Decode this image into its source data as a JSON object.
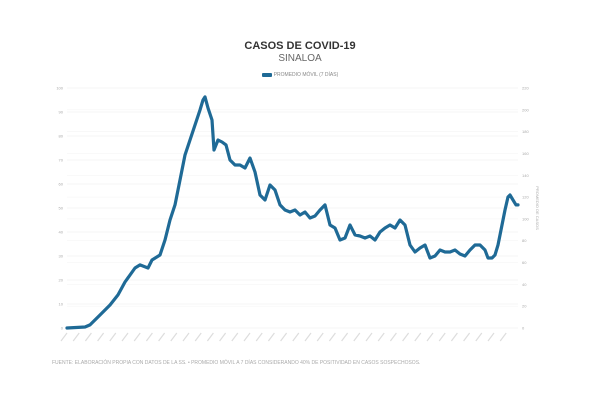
{
  "chart_data": {
    "type": "line",
    "title": "CASOS DE COVID-19",
    "subtitle": "SINALOA",
    "legend": [
      {
        "name": "PROMEDIO MÓVIL (7 DÍAS)",
        "color": "#1f6a96"
      }
    ],
    "legend_placement": "top-center",
    "left_axis": {
      "ylim": [
        0,
        100
      ],
      "ticks": [
        0,
        10,
        20,
        30,
        40,
        50,
        60,
        70,
        80,
        90,
        100
      ]
    },
    "right_axis": {
      "ylim": [
        0,
        220
      ],
      "ticks": [
        0,
        20,
        40,
        60,
        80,
        100,
        120,
        140,
        160,
        180,
        200,
        220
      ],
      "label": "PROMEDIO DE CASOS"
    },
    "grid": true,
    "series": [
      {
        "name": "PROMEDIO MÓVIL (7 DÍAS)",
        "axis": "right",
        "x": [
          0,
          18,
          23,
          33,
          43,
          51,
          58,
          68,
          73,
          81,
          85,
          93,
          98,
          103,
          108,
          113,
          118,
          123,
          128,
          133,
          136,
          138,
          141,
          145,
          147,
          151,
          155,
          159,
          163,
          168,
          173,
          178,
          183,
          188,
          193,
          198,
          203,
          208,
          213,
          218,
          223,
          228,
          233,
          238,
          243,
          248,
          253,
          258,
          263,
          268,
          273,
          278,
          283,
          288,
          293,
          298,
          303,
          308,
          313,
          318,
          323,
          328,
          333,
          338,
          343,
          348,
          353,
          358,
          363,
          368,
          373,
          378,
          383,
          388,
          393,
          398,
          403,
          408,
          413,
          418,
          421,
          425,
          428,
          431,
          435,
          438,
          441,
          443,
          446,
          449,
          451
        ],
        "values": [
          0,
          0.9,
          2.8,
          11.9,
          21.1,
          30.3,
          42.2,
          55,
          57.8,
          55,
          62.3,
          66.9,
          80.7,
          99,
          112.8,
          135.7,
          158.6,
          172.3,
          186.1,
          199.8,
          209,
          211.8,
          201.7,
          190.7,
          163.2,
          172.3,
          170.5,
          167.8,
          154,
          149.4,
          149.4,
          146.7,
          155.8,
          143,
          121.9,
          117.3,
          131.1,
          126.5,
          112.8,
          108.2,
          106.3,
          108.2,
          103.6,
          106.3,
          100.8,
          102.7,
          108.2,
          112.8,
          94.4,
          91.7,
          80.7,
          82.5,
          94.4,
          85.3,
          84.3,
          82.5,
          84.3,
          80.7,
          88,
          91.7,
          94.4,
          91.7,
          99,
          94.4,
          76.1,
          69.7,
          73.3,
          76.1,
          64.2,
          66,
          71.5,
          69.7,
          69.7,
          71.5,
          67.8,
          66,
          71.5,
          76.1,
          76.1,
          71.5,
          64.2,
          64.2,
          66.9,
          76.1,
          94.4,
          108.2,
          120.1,
          121.9,
          117.3,
          112.8,
          112.8
        ]
      }
    ]
  },
  "footer": {
    "source": "FUENTE: ELABORACIÓN PROPIA CON DATOS DE LA SS. • PROMEDIO MÓVIL A 7 DÍAS CONSIDERANDO 40% DE POSITIVIDAD EN CASOS SOSPECHOSOS."
  }
}
